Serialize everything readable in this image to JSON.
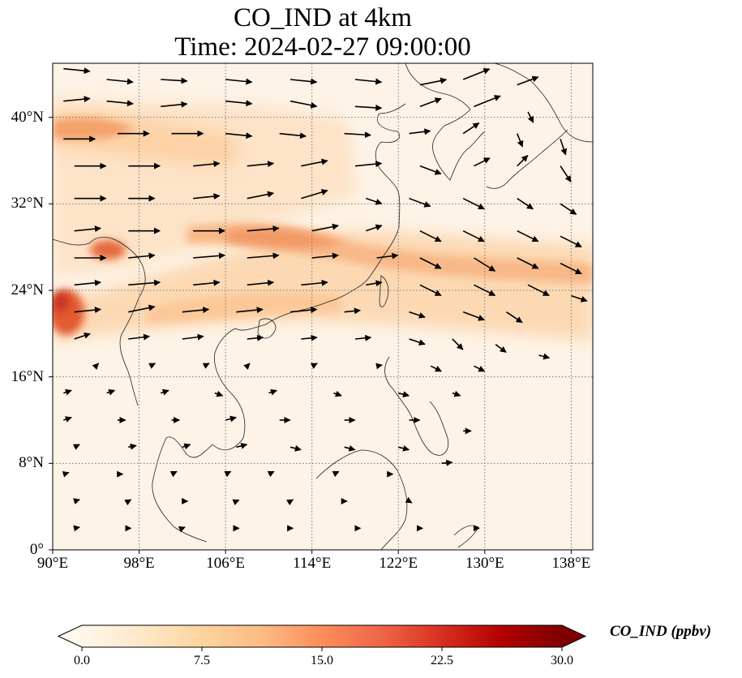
{
  "title_line1": "CO_IND at 4km",
  "title_line2": "Time: 2024-02-27 09:00:00",
  "map": {
    "lon_range": [
      90,
      140
    ],
    "lat_range": [
      0,
      45
    ],
    "lat_ticks": [
      {
        "value": 0,
        "label": "0°"
      },
      {
        "value": 8,
        "label": "8°N"
      },
      {
        "value": 16,
        "label": "16°N"
      },
      {
        "value": 24,
        "label": "24°N"
      },
      {
        "value": 32,
        "label": "32°N"
      },
      {
        "value": 40,
        "label": "40°N"
      }
    ],
    "lon_ticks": [
      {
        "value": 90,
        "label": "90°E"
      },
      {
        "value": 98,
        "label": "98°E"
      },
      {
        "value": 106,
        "label": "106°E"
      },
      {
        "value": 114,
        "label": "114°E"
      },
      {
        "value": 122,
        "label": "122°E"
      },
      {
        "value": 130,
        "label": "130°E"
      },
      {
        "value": 138,
        "label": "138°E"
      }
    ],
    "gridlines": "dotted",
    "plume_colors": [
      "#fdf1e2",
      "#fde0c2",
      "#fbc891",
      "#f59a5e",
      "#e0542f",
      "#c6281a"
    ]
  },
  "colorbar": {
    "label": "CO_IND (ppbv)",
    "min": 0,
    "max": 30,
    "ticks": [
      {
        "value": 0,
        "label": "0.0"
      },
      {
        "value": 7.5,
        "label": "7.5"
      },
      {
        "value": 15,
        "label": "15.0"
      },
      {
        "value": 22.5,
        "label": "22.5"
      },
      {
        "value": 30,
        "label": "30.0"
      }
    ],
    "colormap": "OrRd",
    "colors": [
      "#fff7ec",
      "#fee8c8",
      "#fdd49e",
      "#fdbb84",
      "#fc8d59",
      "#ef6548",
      "#d7301f",
      "#b30000",
      "#7f0000"
    ],
    "extend": "both"
  },
  "wind_arrows": {
    "color": "#000000",
    "arrows": [
      [
        91,
        44.5,
        5,
        -0.5
      ],
      [
        95,
        43.5,
        5,
        -0.5
      ],
      [
        100,
        43.5,
        5,
        -0.3
      ],
      [
        106,
        43.5,
        5,
        -0.5
      ],
      [
        112,
        43.5,
        5,
        -0.5
      ],
      [
        118,
        43.5,
        5,
        -0.5
      ],
      [
        124,
        43,
        5,
        1
      ],
      [
        128,
        43.5,
        5,
        2
      ],
      [
        133,
        43,
        4,
        1.5
      ],
      [
        91,
        41.5,
        5,
        0.5
      ],
      [
        95,
        41.5,
        5,
        -0.5
      ],
      [
        100,
        41,
        5,
        0.5
      ],
      [
        106,
        41.5,
        5,
        -0.5
      ],
      [
        112,
        41.5,
        5,
        -1
      ],
      [
        118,
        41,
        5,
        -0.3
      ],
      [
        124,
        41,
        4,
        1.5
      ],
      [
        129,
        41,
        5,
        2
      ],
      [
        134,
        40.5,
        1,
        -2
      ],
      [
        91,
        38,
        6,
        0
      ],
      [
        96,
        38.5,
        6,
        0
      ],
      [
        101,
        38.5,
        6,
        0
      ],
      [
        106,
        38.5,
        5,
        -0.5
      ],
      [
        111,
        38.5,
        5,
        -0.5
      ],
      [
        117,
        38.5,
        5,
        -0.3
      ],
      [
        123,
        38.5,
        4,
        0.5
      ],
      [
        128,
        38.5,
        3,
        2
      ],
      [
        133,
        38.5,
        1,
        -2.5
      ],
      [
        137,
        38,
        1,
        -3
      ],
      [
        92,
        35.5,
        6,
        0
      ],
      [
        97,
        35.5,
        6,
        0
      ],
      [
        103,
        35.5,
        5,
        0.5
      ],
      [
        108,
        35.5,
        5,
        0.5
      ],
      [
        113,
        35.5,
        5,
        1
      ],
      [
        118,
        35.5,
        5,
        0.5
      ],
      [
        124,
        35.5,
        4,
        -1.5
      ],
      [
        129,
        35.5,
        3,
        1.5
      ],
      [
        133,
        35.5,
        2,
        2
      ],
      [
        137,
        35.5,
        2,
        -3
      ],
      [
        92,
        32.5,
        6,
        0
      ],
      [
        97,
        32.5,
        5,
        0
      ],
      [
        103,
        32.5,
        5,
        0.5
      ],
      [
        108,
        32.5,
        5,
        1
      ],
      [
        113,
        32.5,
        5,
        1.5
      ],
      [
        119,
        32.5,
        3,
        -1
      ],
      [
        123,
        32.5,
        4,
        -1.5
      ],
      [
        128,
        32.5,
        4,
        -2
      ],
      [
        133,
        32.5,
        3,
        -2
      ],
      [
        137,
        32,
        3,
        -2
      ],
      [
        92,
        29.5,
        5,
        0.5
      ],
      [
        97,
        29.5,
        6,
        0
      ],
      [
        103,
        29.5,
        6,
        0
      ],
      [
        108,
        29.5,
        6,
        0.5
      ],
      [
        114,
        29.5,
        5,
        1
      ],
      [
        119,
        29.5,
        3,
        1
      ],
      [
        124,
        29.5,
        4,
        -2
      ],
      [
        128,
        29.5,
        4,
        -2
      ],
      [
        133,
        29.5,
        4,
        -2
      ],
      [
        137,
        29,
        4,
        -2
      ],
      [
        92,
        27,
        6,
        0
      ],
      [
        97,
        27,
        5,
        0.5
      ],
      [
        103,
        27,
        6,
        0.5
      ],
      [
        108,
        27,
        6,
        0.5
      ],
      [
        114,
        27,
        5,
        0.5
      ],
      [
        120,
        27,
        4,
        0.5
      ],
      [
        124,
        27,
        4,
        -2
      ],
      [
        129,
        27,
        4,
        -2.5
      ],
      [
        133,
        27,
        4,
        -2
      ],
      [
        137,
        26.5,
        4,
        -2
      ],
      [
        92,
        24.5,
        5,
        0.5
      ],
      [
        97,
        24.5,
        6,
        0.5
      ],
      [
        103,
        24.5,
        5,
        0.5
      ],
      [
        108,
        24.5,
        5,
        0.5
      ],
      [
        113,
        24.5,
        5,
        0.5
      ],
      [
        119,
        24.5,
        3,
        0.5
      ],
      [
        124,
        24.5,
        4,
        -2
      ],
      [
        129,
        24.5,
        4,
        -2
      ],
      [
        134,
        24.5,
        4,
        -2
      ],
      [
        138,
        23.5,
        3,
        -1
      ],
      [
        92,
        22,
        5,
        0.5
      ],
      [
        97,
        22,
        5,
        1
      ],
      [
        102,
        22,
        5,
        0.5
      ],
      [
        107,
        22,
        5,
        0.5
      ],
      [
        112,
        22,
        5,
        0.5
      ],
      [
        117,
        22,
        3,
        0.3
      ],
      [
        123,
        22,
        3,
        -1
      ],
      [
        128,
        22,
        4,
        -1.5
      ],
      [
        132,
        22,
        3,
        -2
      ],
      [
        92,
        19.5,
        3,
        1
      ],
      [
        97,
        19.5,
        4,
        0.5
      ],
      [
        102,
        19.5,
        4,
        0.5
      ],
      [
        108,
        19.5,
        3,
        0.3
      ],
      [
        113,
        19.5,
        3,
        0.3
      ],
      [
        118,
        19.5,
        3,
        0.3
      ],
      [
        123,
        19.5,
        3,
        -1
      ],
      [
        127,
        19.5,
        2,
        -2
      ],
      [
        131,
        19,
        2,
        -1.5
      ],
      [
        135,
        18,
        2,
        -0.5
      ],
      [
        94,
        17,
        0.5,
        0.5
      ],
      [
        99,
        17,
        1,
        0.5
      ],
      [
        104,
        17,
        1,
        0.5
      ],
      [
        108,
        17,
        0.5,
        0.5
      ],
      [
        114,
        17,
        1,
        0.5
      ],
      [
        120,
        17,
        1,
        0.2
      ],
      [
        125,
        17,
        2,
        -1
      ],
      [
        129,
        17,
        2,
        -1
      ],
      [
        91,
        14.5,
        1.5,
        0.5
      ],
      [
        95,
        14.5,
        1.5,
        0.5
      ],
      [
        100,
        14.5,
        1.5,
        0.5
      ],
      [
        105,
        14.5,
        1.5,
        -0.5
      ],
      [
        110,
        14.5,
        1.5,
        0.5
      ],
      [
        116,
        14.5,
        1.5,
        -0.5
      ],
      [
        122,
        14.5,
        2,
        -0.5
      ],
      [
        127,
        14.5,
        1.5,
        -0.5
      ],
      [
        91,
        12,
        1.5,
        0.5
      ],
      [
        96,
        12,
        1.5,
        0
      ],
      [
        101,
        12,
        1.5,
        0
      ],
      [
        106,
        12,
        2,
        0.5
      ],
      [
        111,
        12,
        2,
        0
      ],
      [
        117,
        12,
        2,
        0
      ],
      [
        123,
        12,
        2,
        0
      ],
      [
        128,
        11,
        1.5,
        0
      ],
      [
        92,
        9.5,
        1,
        0.5
      ],
      [
        97,
        9.5,
        1.5,
        0.3
      ],
      [
        102,
        9.5,
        1.5,
        0.5
      ],
      [
        107,
        9.5,
        2,
        0.5
      ],
      [
        112,
        9.5,
        2,
        -0.5
      ],
      [
        117,
        9.5,
        2,
        -0.5
      ],
      [
        122,
        9.5,
        2,
        -0.5
      ],
      [
        126,
        8,
        2,
        0.2
      ],
      [
        91,
        7,
        1,
        0.3
      ],
      [
        96,
        7,
        1,
        0
      ],
      [
        101,
        7,
        1,
        0.5
      ],
      [
        106,
        7,
        1,
        0.5
      ],
      [
        110,
        7,
        1,
        0.5
      ],
      [
        116,
        7,
        1,
        0.5
      ],
      [
        121,
        7,
        1,
        0
      ],
      [
        92,
        4.5,
        1,
        0.3
      ],
      [
        97,
        4.5,
        0.5,
        0.3
      ],
      [
        102,
        4.5,
        1,
        0
      ],
      [
        107,
        4.5,
        0.5,
        0.2
      ],
      [
        112,
        4.5,
        0.5,
        0.3
      ],
      [
        117,
        4.5,
        0.5,
        0
      ],
      [
        123,
        4.5,
        0.5,
        -0.3
      ],
      [
        92,
        2,
        1,
        0.2
      ],
      [
        97,
        2,
        0.5,
        0
      ],
      [
        102,
        2,
        0.5,
        0.2
      ],
      [
        107,
        2,
        0.5,
        0
      ],
      [
        112,
        2,
        0.5,
        0
      ],
      [
        118,
        2,
        1,
        0
      ],
      [
        124,
        2,
        0.5,
        0
      ],
      [
        129,
        2,
        1,
        0
      ]
    ]
  }
}
